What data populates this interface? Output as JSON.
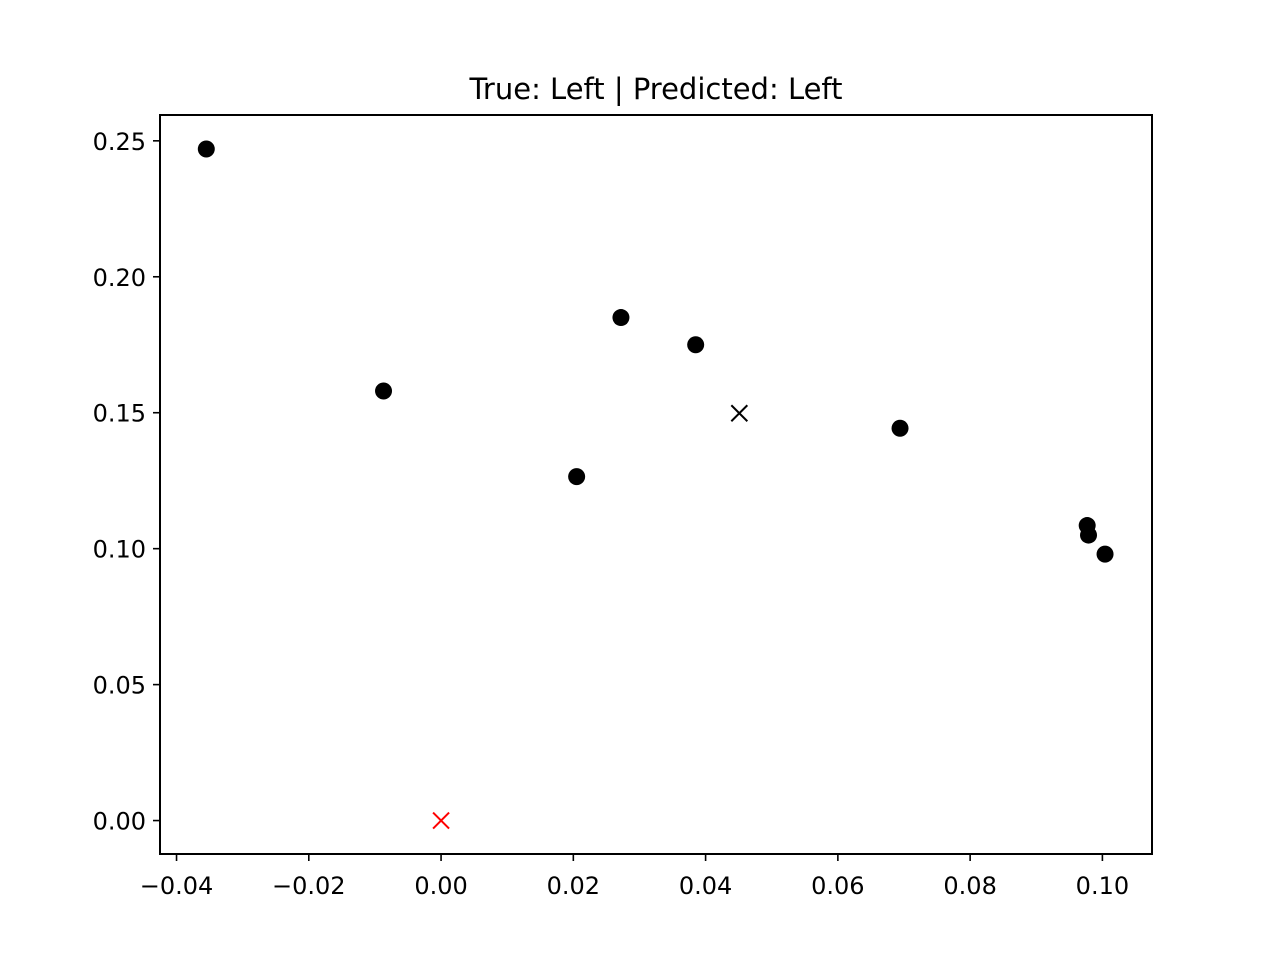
{
  "chart_data": {
    "type": "scatter",
    "title": "True: Left | Predicted: Left",
    "xlabel": "",
    "ylabel": "",
    "xlim": [
      -0.0425,
      0.1075
    ],
    "ylim": [
      -0.0123,
      0.2595
    ],
    "x_ticks": [
      -0.04,
      -0.02,
      0.0,
      0.02,
      0.04,
      0.06,
      0.08,
      0.1
    ],
    "x_tick_labels": [
      "−0.04",
      "−0.02",
      "0.00",
      "0.02",
      "0.04",
      "0.06",
      "0.08",
      "0.10"
    ],
    "y_ticks": [
      0.0,
      0.05,
      0.1,
      0.15,
      0.2,
      0.25
    ],
    "y_tick_labels": [
      "0.00",
      "0.05",
      "0.10",
      "0.15",
      "0.20",
      "0.25"
    ],
    "grid": false,
    "series": [
      {
        "marker": "circle",
        "color": "#000000",
        "points": [
          {
            "x": -0.0355,
            "y": 0.247
          },
          {
            "x": -0.0087,
            "y": 0.158
          },
          {
            "x": 0.0205,
            "y": 0.1265
          },
          {
            "x": 0.0272,
            "y": 0.185
          },
          {
            "x": 0.0385,
            "y": 0.175
          },
          {
            "x": 0.0694,
            "y": 0.1443
          },
          {
            "x": 0.0977,
            "y": 0.1085
          },
          {
            "x": 0.0979,
            "y": 0.105
          },
          {
            "x": 0.1004,
            "y": 0.098
          }
        ]
      },
      {
        "marker": "x",
        "color": "#000000",
        "points": [
          {
            "x": 0.0451,
            "y": 0.1498
          }
        ]
      },
      {
        "marker": "x",
        "color": "#ff0000",
        "points": [
          {
            "x": 0.0,
            "y": 0.0
          }
        ]
      }
    ]
  }
}
